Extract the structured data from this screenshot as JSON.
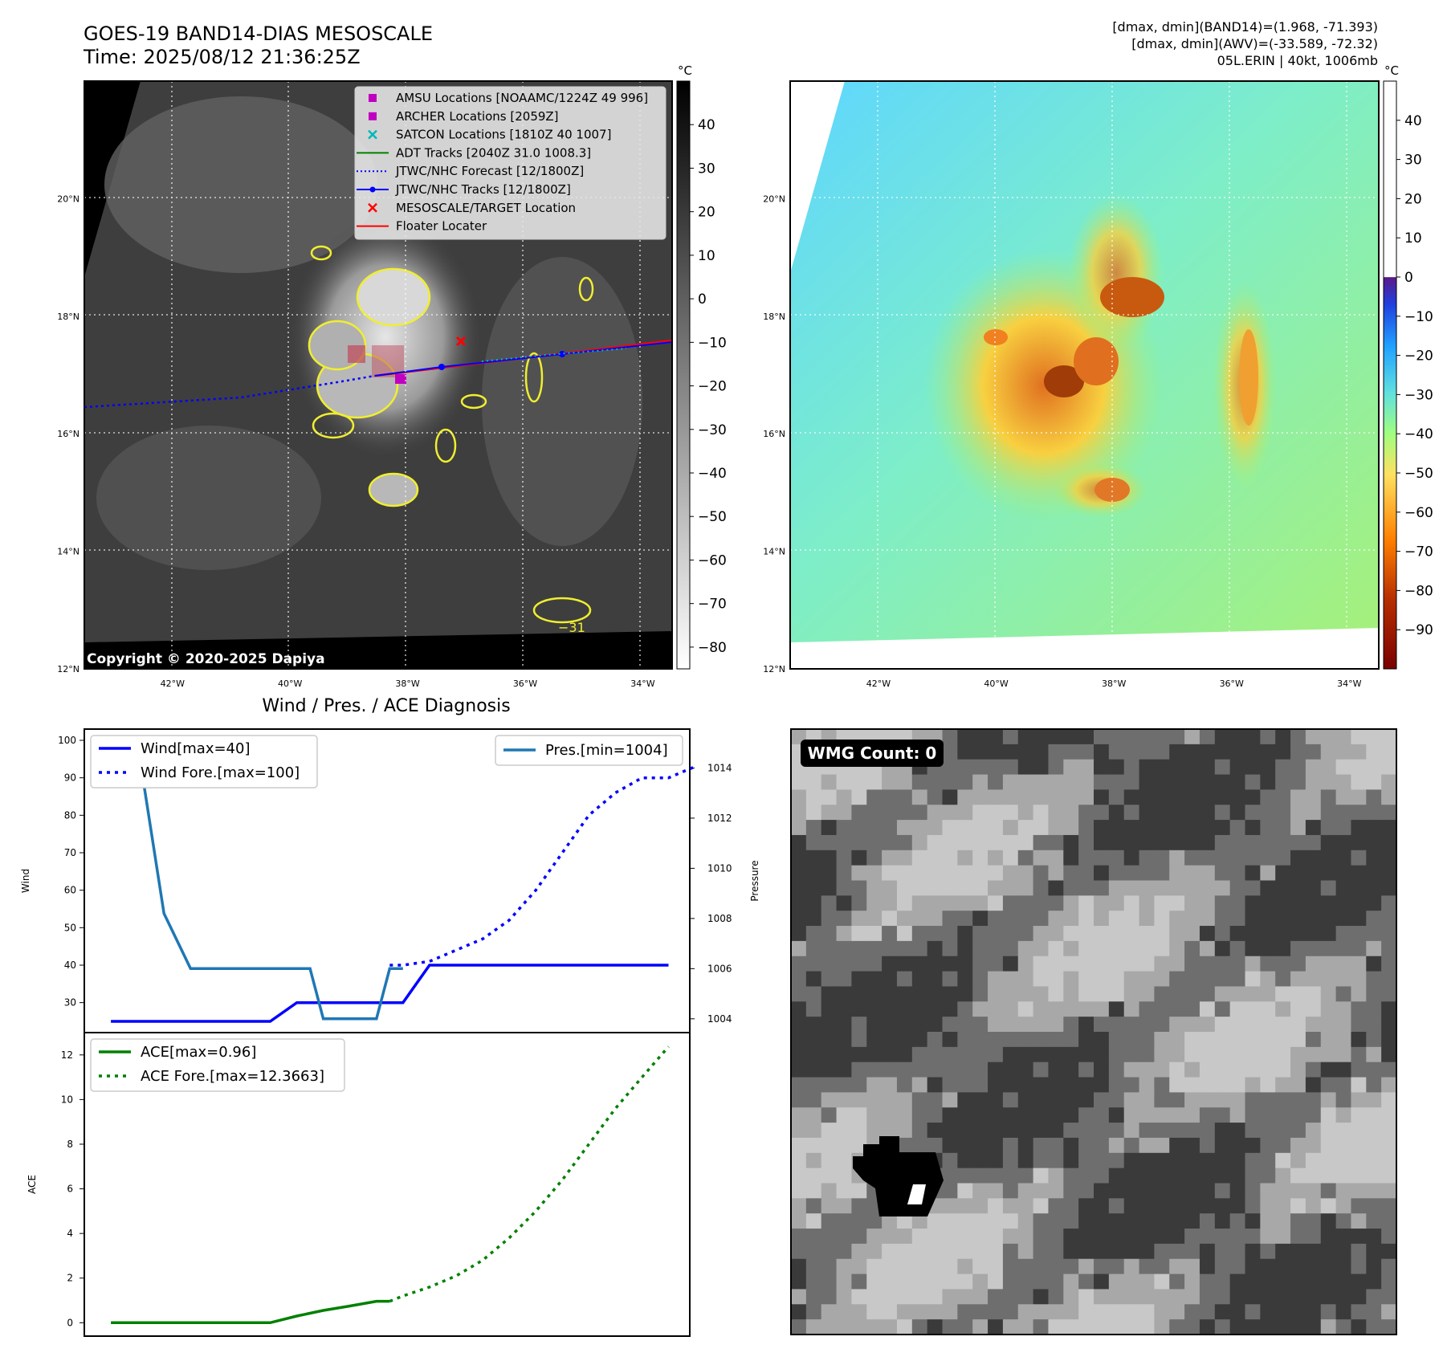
{
  "header": {
    "title_line1": "GOES-19 BAND14-DIAS MESOSCALE",
    "title_line2": "Time: 2025/08/12 21:36:25Z",
    "info_line1": "[dmax, dmin](BAND14)=(1.968, -71.393)",
    "info_line2": "[dmax, dmin](AWV)=(-33.589, -72.32)",
    "info_line3": "05L.ERIN | 40kt, 1006mb"
  },
  "map_axes": {
    "lat_ticks": [
      "20°N",
      "18°N",
      "16°N",
      "14°N",
      "12°N"
    ],
    "lon_ticks": [
      "42°W",
      "40°W",
      "38°W",
      "36°W",
      "34°W"
    ],
    "lat_values": [
      20,
      18,
      16,
      14,
      12
    ],
    "lon_values": [
      -42,
      -40,
      -38,
      -36,
      -34
    ],
    "lat_range": [
      12,
      22
    ],
    "lon_range": [
      -43.5,
      -33.5
    ]
  },
  "ir_panel": {
    "copyright": "Copyright © 2020-2025 Dapiya",
    "contour_label": "−31",
    "colorbar_unit": "°C",
    "colorbar_ticks": [
      "40",
      "30",
      "20",
      "10",
      "0",
      "−10",
      "−20",
      "−30",
      "−40",
      "−50",
      "−60",
      "−70",
      "−80"
    ],
    "colorbar_values": [
      40,
      30,
      20,
      10,
      0,
      -10,
      -20,
      -30,
      -40,
      -50,
      -60,
      -70,
      -80
    ],
    "colorbar_range": [
      -85,
      50
    ],
    "legend": [
      {
        "label": "AMSU Locations [NOAAMC/1224Z 49 996]",
        "marker": "square",
        "color": "#c000c0"
      },
      {
        "label": "ARCHER Locations [2059Z]",
        "marker": "square",
        "color": "#c000c0"
      },
      {
        "label": "SATCON Locations [1810Z 40 1007]",
        "marker": "x",
        "color": "#00b8b8"
      },
      {
        "label": "ADT Tracks [2040Z 31.0 1008.3]",
        "marker": "line",
        "color": "#008000"
      },
      {
        "label": "JTWC/NHC Forecast [12/1800Z]",
        "marker": "dotted",
        "color": "#0000ff"
      },
      {
        "label": "JTWC/NHC Tracks [12/1800Z]",
        "marker": "line-dot",
        "color": "#0000ff"
      },
      {
        "label": "MESOSCALE/TARGET Location",
        "marker": "x",
        "color": "#ff0000"
      },
      {
        "label": "Floater Locater",
        "marker": "line",
        "color": "#ff0000"
      }
    ]
  },
  "wv_panel": {
    "colorbar_unit": "°C",
    "colorbar_ticks": [
      "40",
      "30",
      "20",
      "10",
      "0",
      "−10",
      "−20",
      "−30",
      "−40",
      "−50",
      "−60",
      "−70",
      "−80",
      "−90"
    ],
    "colorbar_values": [
      40,
      30,
      20,
      10,
      0,
      -10,
      -20,
      -30,
      -40,
      -50,
      -60,
      -70,
      -80,
      -90
    ],
    "colorbar_range": [
      -100,
      50
    ]
  },
  "wmg_panel": {
    "badge": "WMG Count: 0"
  },
  "chart_data": [
    {
      "type": "line",
      "title": "Wind / Pres. / ACE Diagnosis",
      "ylabel": "Wind",
      "y2label": "Pressure",
      "ylim": [
        22,
        103
      ],
      "y2lim": [
        1003.45,
        1015.55
      ],
      "xlim": [
        -1,
        21.8
      ],
      "yticks": [
        30,
        40,
        50,
        60,
        70,
        80,
        90,
        100
      ],
      "y2ticks": [
        1004,
        1006,
        1008,
        1010,
        1012,
        1014
      ],
      "legend_left": [
        "Wind[max=40]",
        "Wind Fore.[max=100]"
      ],
      "legend_right": [
        "Pres.[min=1004]"
      ],
      "series": [
        {
          "name": "Wind[max=40]",
          "axis": "left",
          "style": "solid",
          "color": "#0000ff",
          "x": [
            0,
            1,
            2,
            3,
            4,
            5,
            6,
            7,
            8,
            9,
            10,
            11,
            12,
            13
          ],
          "y": [
            25,
            25,
            25,
            25,
            25,
            25,
            25,
            30,
            30,
            30,
            30,
            30,
            40,
            40
          ]
        },
        {
          "name": "Wind[max=40]",
          "axis": "left",
          "style": "solid",
          "color": "#0000ff",
          "x": [
            13,
            14,
            15,
            16,
            17,
            18,
            19,
            20,
            21
          ],
          "y": [
            40,
            40,
            40,
            40,
            40,
            40,
            40,
            40,
            40
          ]
        },
        {
          "name": "Wind Fore.[max=100]",
          "axis": "left",
          "style": "dotted",
          "color": "#0000ff",
          "x": [
            10.5,
            11,
            12,
            13,
            14,
            15,
            16,
            17,
            18,
            19,
            20,
            21,
            22
          ],
          "y": [
            40,
            40,
            41,
            44,
            47,
            52,
            60,
            70,
            80,
            86,
            90,
            90,
            93
          ]
        },
        {
          "name": "Pres.[min=1004]",
          "axis": "right",
          "style": "solid",
          "color": "#1f77b4",
          "x": [
            0,
            0.6,
            1,
            2,
            3,
            4,
            5,
            6,
            7,
            7.5,
            8,
            9,
            10,
            10.5,
            11
          ],
          "y": [
            1015,
            1015,
            1015,
            1008.2,
            1006,
            1006,
            1006,
            1006,
            1006,
            1006,
            1004,
            1004,
            1004,
            1006,
            1006
          ]
        }
      ]
    },
    {
      "type": "line",
      "ylabel": "ACE",
      "ylim": [
        -0.6,
        13.0
      ],
      "xlim": [
        -1,
        21.8
      ],
      "yticks": [
        0,
        2,
        4,
        6,
        8,
        10,
        12
      ],
      "legend": [
        "ACE[max=0.96]",
        "ACE Fore.[max=12.3663]"
      ],
      "series": [
        {
          "name": "ACE[max=0.96]",
          "style": "solid",
          "color": "#008000",
          "x": [
            0,
            1,
            2,
            3,
            4,
            5,
            6,
            7,
            8,
            9,
            10,
            10.5
          ],
          "y": [
            0,
            0,
            0,
            0,
            0,
            0,
            0,
            0.3,
            0.55,
            0.75,
            0.96,
            0.96
          ]
        },
        {
          "name": "ACE Fore.[max=12.3663]",
          "style": "dotted",
          "color": "#008000",
          "x": [
            10.5,
            11,
            12,
            13,
            14,
            15,
            16,
            17,
            18,
            19,
            20,
            21
          ],
          "y": [
            0.96,
            1.2,
            1.6,
            2.1,
            2.8,
            3.8,
            5.0,
            6.4,
            8.0,
            9.6,
            11.0,
            12.37
          ]
        }
      ]
    }
  ]
}
